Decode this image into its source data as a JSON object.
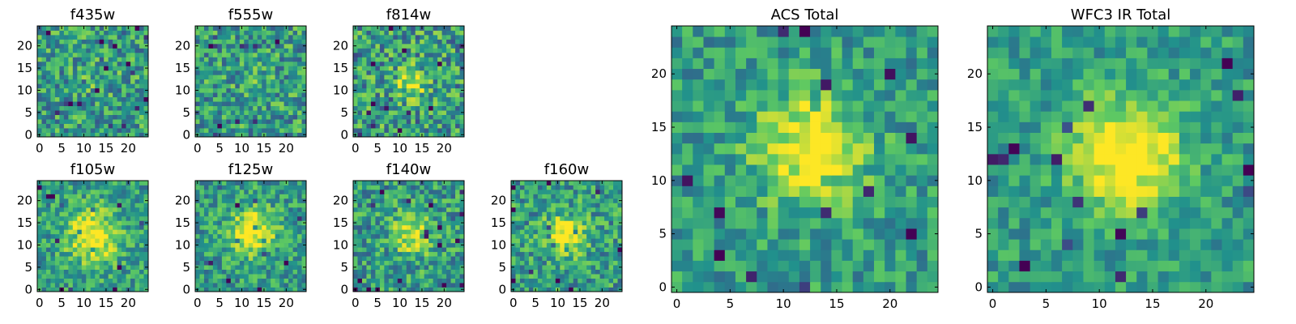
{
  "colormap": [
    "#440154",
    "#3b528b",
    "#21918c",
    "#5ec962",
    "#fde725"
  ],
  "chart_data": [
    {
      "type": "heatmap",
      "title": "f435w",
      "grid_size": 25,
      "noise": 0.55,
      "source_sigma": 3.5,
      "source_amp": 0.15,
      "seed": 11,
      "xticks": [
        0,
        5,
        10,
        15,
        20
      ],
      "yticks": [
        0,
        5,
        10,
        15,
        20
      ],
      "source_center": [
        12.5,
        12.5
      ]
    },
    {
      "type": "heatmap",
      "title": "f555w",
      "grid_size": 25,
      "noise": 0.55,
      "source_sigma": 3.5,
      "source_amp": 0.1,
      "seed": 22,
      "xticks": [
        0,
        5,
        10,
        15,
        20
      ],
      "yticks": [
        0,
        5,
        10,
        15,
        20
      ],
      "source_center": [
        12.5,
        12.5
      ]
    },
    {
      "type": "heatmap",
      "title": "f814w",
      "grid_size": 25,
      "noise": 0.6,
      "source_sigma": 2.2,
      "source_amp": 0.8,
      "seed": 33,
      "xticks": [
        0,
        5,
        10,
        15,
        20
      ],
      "yticks": [
        0,
        5,
        10,
        15,
        20
      ],
      "source_center": [
        12.5,
        12.0
      ]
    },
    {
      "type": "heatmap",
      "title": "f105w",
      "grid_size": 25,
      "noise": 0.45,
      "source_sigma": 4.0,
      "source_amp": 1.0,
      "seed": 44,
      "xticks": [
        0,
        5,
        10,
        15,
        20
      ],
      "yticks": [
        0,
        5,
        10,
        15,
        20
      ],
      "source_center": [
        12.0,
        12.0
      ]
    },
    {
      "type": "heatmap",
      "title": "f125w",
      "grid_size": 25,
      "noise": 0.45,
      "source_sigma": 3.5,
      "source_amp": 0.9,
      "seed": 55,
      "xticks": [
        0,
        5,
        10,
        15,
        20
      ],
      "yticks": [
        0,
        5,
        10,
        15,
        20
      ],
      "source_center": [
        12.5,
        13.0
      ]
    },
    {
      "type": "heatmap",
      "title": "f140w",
      "grid_size": 25,
      "noise": 0.5,
      "source_sigma": 3.0,
      "source_amp": 0.8,
      "seed": 66,
      "xticks": [
        0,
        5,
        10,
        15,
        20
      ],
      "yticks": [
        0,
        5,
        10,
        15,
        20
      ],
      "source_center": [
        13.0,
        12.5
      ]
    },
    {
      "type": "heatmap",
      "title": "f160w",
      "grid_size": 25,
      "noise": 0.5,
      "source_sigma": 3.0,
      "source_amp": 1.0,
      "seed": 77,
      "xticks": [
        0,
        5,
        10,
        15,
        20
      ],
      "yticks": [
        0,
        5,
        10,
        15,
        20
      ],
      "source_center": [
        12.0,
        12.5
      ]
    },
    {
      "type": "heatmap",
      "title": "ACS Total",
      "grid_size": 25,
      "noise": 0.4,
      "source_sigma": 3.5,
      "source_amp": 0.9,
      "seed": 88,
      "xticks": [
        0,
        5,
        10,
        15,
        20
      ],
      "yticks": [
        0,
        5,
        10,
        15,
        20
      ],
      "source_center": [
        12.5,
        13.0
      ]
    },
    {
      "type": "heatmap",
      "title": "WFC3 IR Total",
      "grid_size": 25,
      "noise": 0.35,
      "source_sigma": 3.5,
      "source_amp": 1.1,
      "seed": 99,
      "xticks": [
        0,
        5,
        10,
        15,
        20
      ],
      "yticks": [
        0,
        5,
        10,
        15,
        20
      ],
      "source_center": [
        12.5,
        12.5
      ]
    }
  ]
}
